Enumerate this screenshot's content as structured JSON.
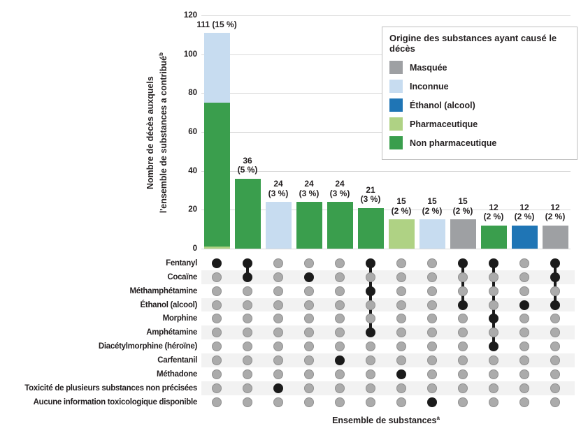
{
  "colors": {
    "masquee": "#9EA0A3",
    "inconnue": "#C7DCF0",
    "ethanol": "#1F75B5",
    "pharmaceutique": "#AFD284",
    "non_pharmaceutique": "#3A9E4D",
    "dot_unfilled": "#ABABAB",
    "dot_unfilled_border": "#8F8F8F",
    "dot_filled": "#1B1B1B",
    "gridline": "#D9D9D9",
    "row_band": "#F2F2F2",
    "text": "#231F20"
  },
  "legend": {
    "title": "Origine des substances ayant causé le décès",
    "items": [
      {
        "label": "Masquée",
        "color_key": "masquee"
      },
      {
        "label": "Inconnue",
        "color_key": "inconnue"
      },
      {
        "label": "Éthanol (alcool)",
        "color_key": "ethanol"
      },
      {
        "label": "Pharmaceutique",
        "color_key": "pharmaceutique"
      },
      {
        "label": "Non pharmaceutique",
        "color_key": "non_pharmaceutique"
      }
    ]
  },
  "y_axis": {
    "label_line1": "Nombre de décès auxquels",
    "label_line2": "l'ensemble de substances a contribué",
    "label_sup": "b",
    "ticks": [
      0,
      20,
      40,
      60,
      80,
      100,
      120
    ]
  },
  "x_axis": {
    "label": "Ensemble de substances",
    "label_sup": "a"
  },
  "chart_data": {
    "type": "bar",
    "variant": "upset",
    "ylabel": "Nombre de décès auxquels l'ensemble de substances a contribué",
    "xlabel": "Ensemble de substances",
    "ylim": [
      0,
      120
    ],
    "yticks": [
      0,
      20,
      40,
      60,
      80,
      100,
      120
    ],
    "grid": true,
    "legend_position": "top-right",
    "rows": [
      "Fentanyl",
      "Cocaïne",
      "Méthamphétamine",
      "Éthanol (alcool)",
      "Morphine",
      "Amphétamine",
      "Diacétylmorphine (héroïne)",
      "Carfentanil",
      "Méthadone",
      "Toxicité de plusieurs substances non précisées",
      "Aucune information toxicologique disponible"
    ],
    "shaded_row_indices": [
      1,
      3,
      5,
      7,
      9
    ],
    "columns": [
      {
        "value": 111,
        "pct": "15 %",
        "label_lines": [
          "111 (15 %)"
        ],
        "segments": [
          {
            "origin": "pharmaceutique",
            "value": 1
          },
          {
            "origin": "non_pharmaceutique",
            "value": 74
          },
          {
            "origin": "inconnue",
            "value": 36
          }
        ],
        "member_rows": [
          0
        ],
        "members": [
          "Fentanyl"
        ]
      },
      {
        "value": 36,
        "pct": "5 %",
        "label_lines": [
          "36",
          "(5 %)"
        ],
        "segments": [
          {
            "origin": "non_pharmaceutique",
            "value": 36
          }
        ],
        "member_rows": [
          0,
          1
        ],
        "members": [
          "Fentanyl",
          "Cocaïne"
        ]
      },
      {
        "value": 24,
        "pct": "3 %",
        "label_lines": [
          "24",
          "(3 %)"
        ],
        "segments": [
          {
            "origin": "inconnue",
            "value": 24
          }
        ],
        "member_rows": [
          9
        ],
        "members": [
          "Toxicité de plusieurs substances non précisées"
        ]
      },
      {
        "value": 24,
        "pct": "3 %",
        "label_lines": [
          "24",
          "(3 %)"
        ],
        "segments": [
          {
            "origin": "non_pharmaceutique",
            "value": 24
          }
        ],
        "member_rows": [
          1
        ],
        "members": [
          "Cocaïne"
        ]
      },
      {
        "value": 24,
        "pct": "3 %",
        "label_lines": [
          "24",
          "(3 %)"
        ],
        "segments": [
          {
            "origin": "non_pharmaceutique",
            "value": 24
          }
        ],
        "member_rows": [
          7
        ],
        "members": [
          "Carfentanil"
        ]
      },
      {
        "value": 21,
        "pct": "3 %",
        "label_lines": [
          "21",
          "(3 %)"
        ],
        "segments": [
          {
            "origin": "non_pharmaceutique",
            "value": 21
          }
        ],
        "member_rows": [
          0,
          2,
          5
        ],
        "members": [
          "Fentanyl",
          "Méthamphétamine",
          "Amphétamine"
        ]
      },
      {
        "value": 15,
        "pct": "2 %",
        "label_lines": [
          "15",
          "(2 %)"
        ],
        "segments": [
          {
            "origin": "pharmaceutique",
            "value": 15
          }
        ],
        "member_rows": [
          8
        ],
        "members": [
          "Méthadone"
        ]
      },
      {
        "value": 15,
        "pct": "2 %",
        "label_lines": [
          "15",
          "(2 %)"
        ],
        "segments": [
          {
            "origin": "inconnue",
            "value": 15
          }
        ],
        "member_rows": [
          10
        ],
        "members": [
          "Aucune information toxicologique disponible"
        ]
      },
      {
        "value": 15,
        "pct": "2 %",
        "label_lines": [
          "15",
          "(2 %)"
        ],
        "segments": [
          {
            "origin": "masquee",
            "value": 15
          }
        ],
        "member_rows": [
          0,
          3
        ],
        "members": [
          "Fentanyl",
          "Éthanol (alcool)"
        ]
      },
      {
        "value": 12,
        "pct": "2 %",
        "label_lines": [
          "12",
          "(2 %)"
        ],
        "segments": [
          {
            "origin": "non_pharmaceutique",
            "value": 12
          }
        ],
        "member_rows": [
          0,
          4,
          6
        ],
        "members": [
          "Fentanyl",
          "Morphine",
          "Diacétylmorphine (héroïne)"
        ]
      },
      {
        "value": 12,
        "pct": "2 %",
        "label_lines": [
          "12",
          "(2 %)"
        ],
        "segments": [
          {
            "origin": "ethanol",
            "value": 12
          }
        ],
        "member_rows": [
          3
        ],
        "members": [
          "Éthanol (alcool)"
        ]
      },
      {
        "value": 12,
        "pct": "2 %",
        "label_lines": [
          "12",
          "(2 %)"
        ],
        "segments": [
          {
            "origin": "masquee",
            "value": 12
          }
        ],
        "member_rows": [
          0,
          1,
          3
        ],
        "members": [
          "Fentanyl",
          "Cocaïne",
          "Éthanol (alcool)"
        ]
      }
    ]
  }
}
